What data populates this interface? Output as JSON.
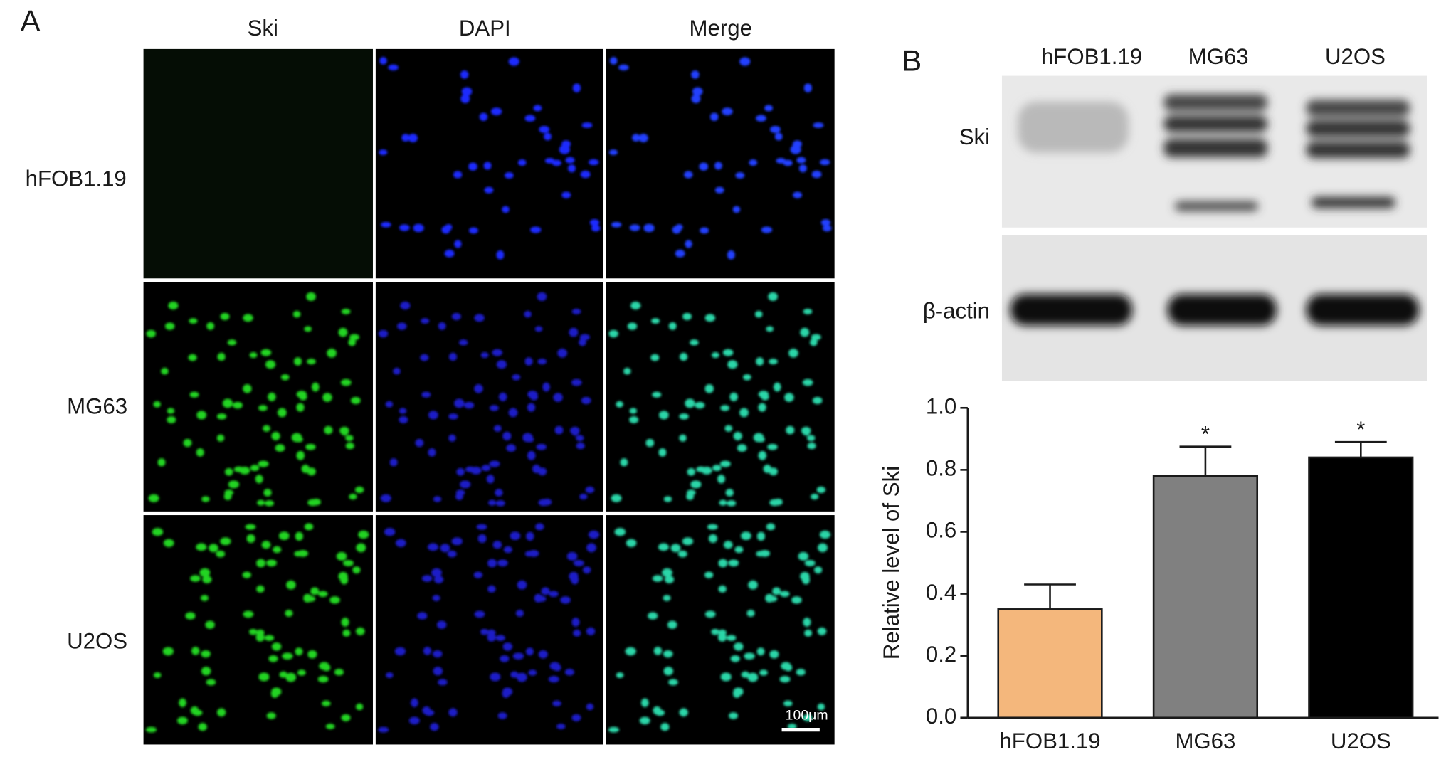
{
  "panel_a": {
    "label": "A",
    "columns": [
      "Ski",
      "DAPI",
      "Merge"
    ],
    "rows": [
      "hFOB1.19",
      "MG63",
      "U2OS"
    ],
    "scale_bar": "100μm"
  },
  "panel_b": {
    "label": "B",
    "blot_lanes": [
      "hFOB1.19",
      "MG63",
      "U2OS"
    ],
    "blot_rows": [
      "Ski",
      "β-actin"
    ]
  },
  "chart_data": {
    "type": "bar",
    "ylabel": "Relative level of Ski",
    "categories": [
      "hFOB1.19",
      "MG63",
      "U2OS"
    ],
    "values": [
      0.35,
      0.78,
      0.84
    ],
    "errors": [
      0.08,
      0.095,
      0.05
    ],
    "colors": [
      "#f4b77c",
      "#808080",
      "#000000"
    ],
    "significance": [
      null,
      "*",
      "*"
    ],
    "ylim": [
      0,
      1.0
    ],
    "yticks": [
      {
        "value": 0,
        "label": "0.0"
      },
      0.2,
      0.4,
      0.6,
      0.8,
      {
        "value": 1.0,
        "label": "1.0"
      }
    ]
  }
}
